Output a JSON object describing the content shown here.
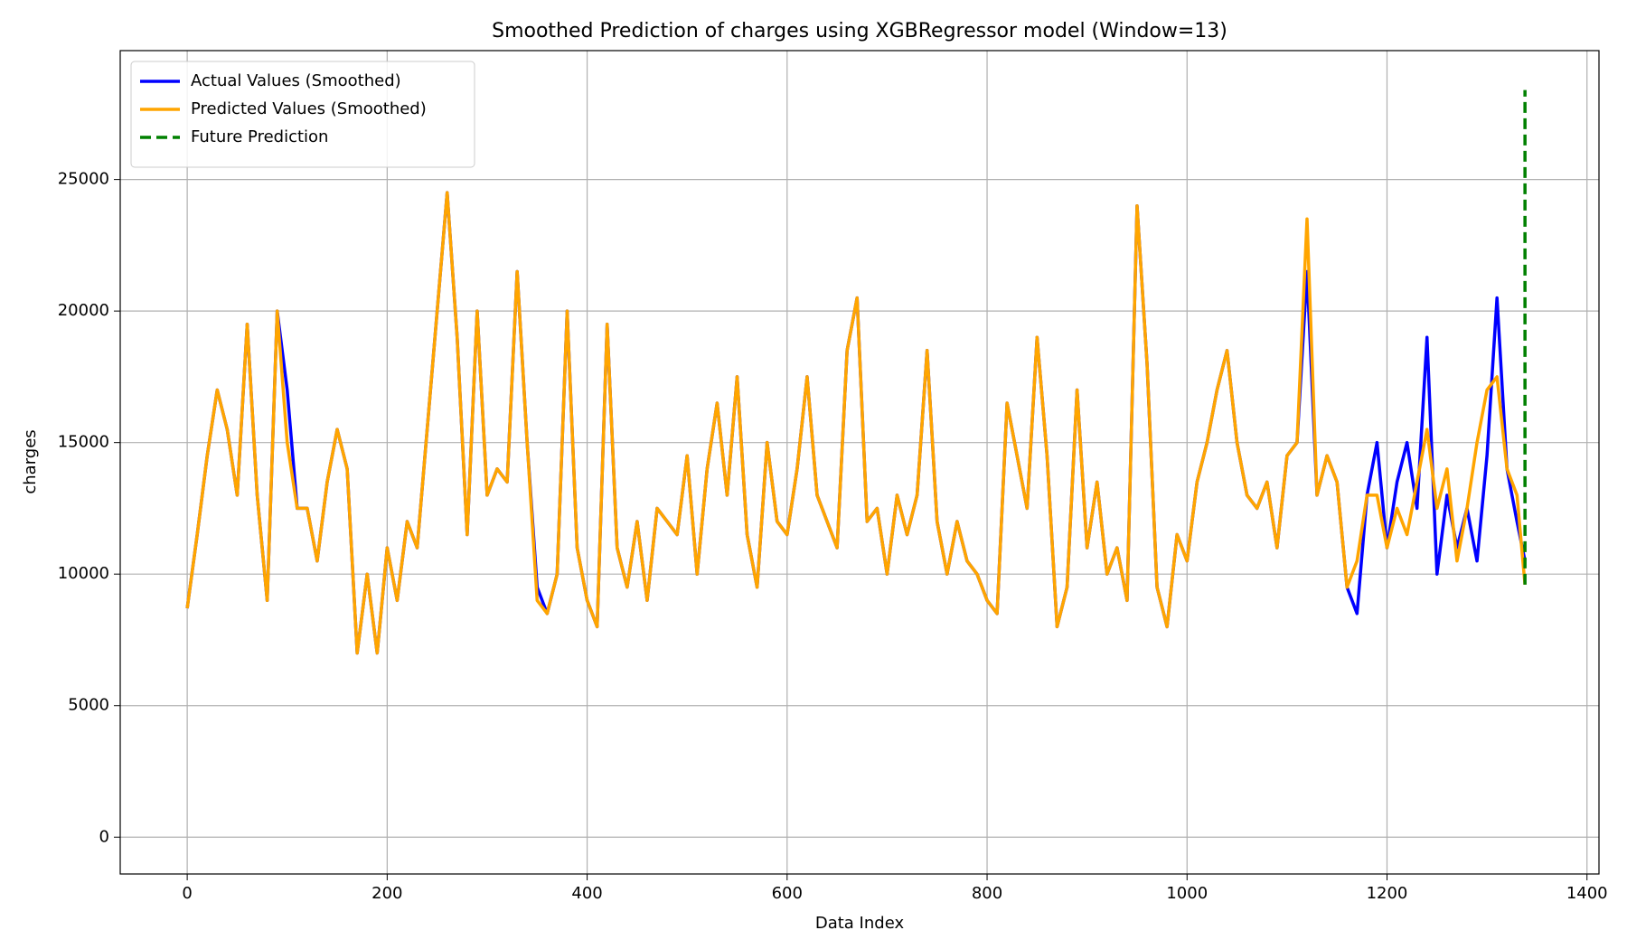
{
  "chart_data": {
    "type": "line",
    "title": "Smoothed Prediction of charges using XGBRegressor model (Window=13)",
    "x_label": "Data Index",
    "y_label": "charges",
    "xlim": [
      -67,
      1412
    ],
    "ylim": [
      -1400,
      29900
    ],
    "xticks": [
      0,
      200,
      400,
      600,
      800,
      1000,
      1200,
      1400
    ],
    "yticks": [
      0,
      5000,
      10000,
      15000,
      20000,
      25000
    ],
    "grid": true,
    "legend": "upper left",
    "series": [
      {
        "name": "Actual Values (Smoothed)",
        "color": "#0000ff",
        "linestyle": "solid",
        "x": [
          0,
          10,
          20,
          30,
          40,
          50,
          60,
          70,
          80,
          90,
          100,
          110,
          120,
          130,
          140,
          150,
          160,
          170,
          180,
          190,
          200,
          210,
          220,
          230,
          240,
          250,
          260,
          270,
          280,
          290,
          300,
          310,
          320,
          330,
          340,
          350,
          360,
          370,
          380,
          390,
          400,
          410,
          420,
          430,
          440,
          450,
          460,
          470,
          480,
          490,
          500,
          510,
          520,
          530,
          540,
          550,
          560,
          570,
          580,
          590,
          600,
          610,
          620,
          630,
          640,
          650,
          660,
          670,
          680,
          690,
          700,
          710,
          720,
          730,
          740,
          750,
          760,
          770,
          780,
          790,
          800,
          810,
          820,
          830,
          840,
          850,
          860,
          870,
          880,
          890,
          900,
          910,
          920,
          930,
          940,
          950,
          960,
          970,
          980,
          990,
          1000,
          1010,
          1020,
          1030,
          1040,
          1050,
          1060,
          1070,
          1080,
          1090,
          1100,
          1110,
          1120,
          1130,
          1140,
          1150,
          1160,
          1170,
          1180,
          1190,
          1200,
          1210,
          1220,
          1230,
          1240,
          1250,
          1260,
          1270,
          1280,
          1290,
          1300,
          1310,
          1320,
          1330,
          1338
        ],
        "values": [
          8700,
          11500,
          14500,
          17000,
          15500,
          13000,
          19500,
          13000,
          9000,
          20000,
          17000,
          12500,
          12500,
          10500,
          13500,
          15500,
          14000,
          7000,
          10000,
          7000,
          11000,
          9000,
          12000,
          11000,
          15500,
          20000,
          24500,
          19000,
          11500,
          20000,
          13000,
          14000,
          13500,
          21500,
          15000,
          9500,
          8500,
          10000,
          20000,
          11000,
          9000,
          8000,
          19500,
          11000,
          9500,
          12000,
          9000,
          12500,
          12000,
          11500,
          14500,
          10000,
          14000,
          16500,
          13000,
          17500,
          11500,
          9500,
          15000,
          12000,
          11500,
          14000,
          17500,
          13000,
          12000,
          11000,
          18500,
          20500,
          12000,
          12500,
          10000,
          13000,
          11500,
          13000,
          18500,
          12000,
          10000,
          12000,
          10500,
          10000,
          9000,
          8500,
          16500,
          14500,
          12500,
          19000,
          14500,
          8000,
          9500,
          17000,
          11000,
          13500,
          10000,
          11000,
          9000,
          24000,
          18000,
          9500,
          8000,
          11500,
          10500,
          13500,
          15000,
          17000,
          18500,
          15000,
          13000,
          12500,
          13500,
          11000,
          14500,
          15000,
          21500,
          13000,
          14500,
          13500,
          9500,
          8500,
          13000,
          15000,
          11000,
          13500,
          15000,
          12500,
          19000,
          10000,
          13000,
          11000,
          12500,
          10500,
          14500,
          20500,
          14000,
          12000,
          10500
        ]
      },
      {
        "name": "Predicted Values (Smoothed)",
        "color": "#ffa500",
        "linestyle": "solid",
        "x": [
          0,
          10,
          20,
          30,
          40,
          50,
          60,
          70,
          80,
          90,
          100,
          110,
          120,
          130,
          140,
          150,
          160,
          170,
          180,
          190,
          200,
          210,
          220,
          230,
          240,
          250,
          260,
          270,
          280,
          290,
          300,
          310,
          320,
          330,
          340,
          350,
          360,
          370,
          380,
          390,
          400,
          410,
          420,
          430,
          440,
          450,
          460,
          470,
          480,
          490,
          500,
          510,
          520,
          530,
          540,
          550,
          560,
          570,
          580,
          590,
          600,
          610,
          620,
          630,
          640,
          650,
          660,
          670,
          680,
          690,
          700,
          710,
          720,
          730,
          740,
          750,
          760,
          770,
          780,
          790,
          800,
          810,
          820,
          830,
          840,
          850,
          860,
          870,
          880,
          890,
          900,
          910,
          920,
          930,
          940,
          950,
          960,
          970,
          980,
          990,
          1000,
          1010,
          1020,
          1030,
          1040,
          1050,
          1060,
          1070,
          1080,
          1090,
          1100,
          1110,
          1120,
          1130,
          1140,
          1150,
          1160,
          1170,
          1180,
          1190,
          1200,
          1210,
          1220,
          1230,
          1240,
          1250,
          1260,
          1270,
          1280,
          1290,
          1300,
          1310,
          1320,
          1330,
          1338
        ],
        "values": [
          8700,
          11500,
          14500,
          17000,
          15500,
          13000,
          19500,
          13000,
          9000,
          20000,
          15000,
          12500,
          12500,
          10500,
          13500,
          15500,
          14000,
          7000,
          10000,
          7000,
          11000,
          9000,
          12000,
          11000,
          15500,
          20000,
          24500,
          19000,
          11500,
          20000,
          13000,
          14000,
          13500,
          21500,
          15000,
          9000,
          8500,
          10000,
          20000,
          11000,
          9000,
          8000,
          19500,
          11000,
          9500,
          12000,
          9000,
          12500,
          12000,
          11500,
          14500,
          10000,
          14000,
          16500,
          13000,
          17500,
          11500,
          9500,
          15000,
          12000,
          11500,
          14000,
          17500,
          13000,
          12000,
          11000,
          18500,
          20500,
          12000,
          12500,
          10000,
          13000,
          11500,
          13000,
          18500,
          12000,
          10000,
          12000,
          10500,
          10000,
          9000,
          8500,
          16500,
          14500,
          12500,
          19000,
          14500,
          8000,
          9500,
          17000,
          11000,
          13500,
          10000,
          11000,
          9000,
          24000,
          18000,
          9500,
          8000,
          11500,
          10500,
          13500,
          15000,
          17000,
          18500,
          15000,
          13000,
          12500,
          13500,
          11000,
          14500,
          15000,
          23500,
          13000,
          14500,
          13500,
          9500,
          10500,
          13000,
          13000,
          11000,
          12500,
          11500,
          13500,
          15500,
          12500,
          14000,
          10500,
          12500,
          15000,
          17000,
          17500,
          14000,
          13000,
          9600
        ]
      },
      {
        "name": "Future Prediction",
        "color": "#008000",
        "linestyle": "dashed",
        "x": [
          1338,
          1338
        ],
        "values": [
          9600,
          28400
        ]
      }
    ]
  }
}
